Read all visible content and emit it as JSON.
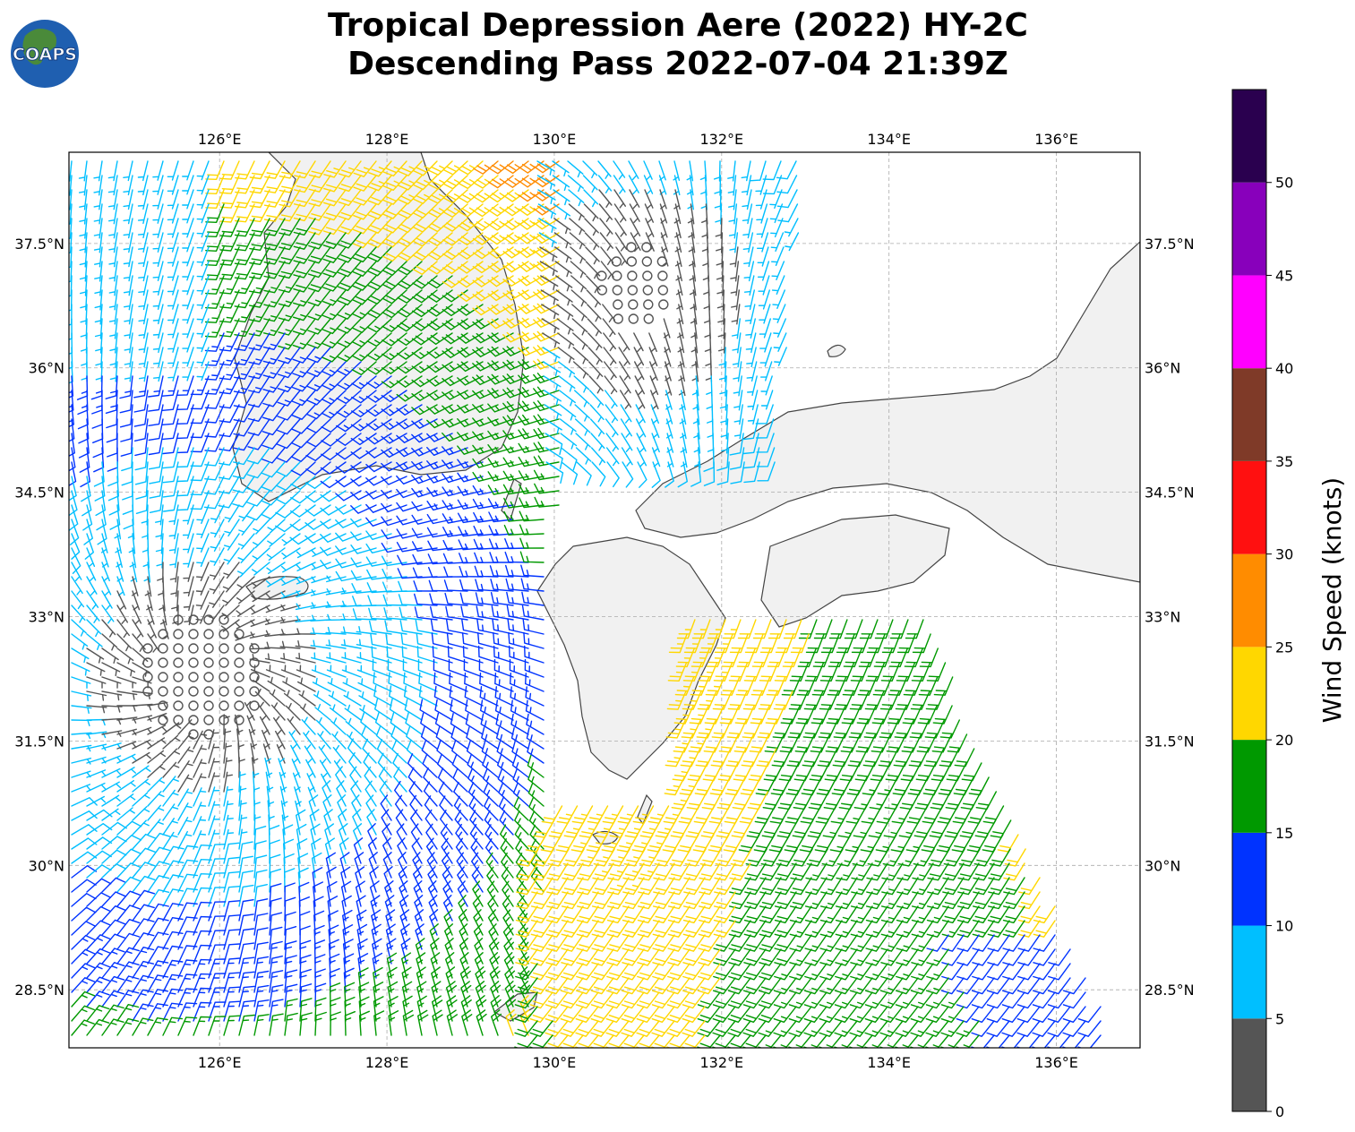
{
  "title_line1": "Tropical Depression Aere (2022) HY-2C",
  "title_line2": "Descending Pass 2022-07-04 21:39Z",
  "logo_text": "COAPS",
  "map": {
    "lon_min": 124.2,
    "lon_max": 137.0,
    "lat_min": 27.8,
    "lat_max": 38.6,
    "lon_ticks": [
      126,
      128,
      130,
      132,
      134,
      136
    ],
    "lon_labels": [
      "126°E",
      "128°E",
      "130°E",
      "132°E",
      "134°E",
      "136°E"
    ],
    "lat_ticks": [
      28.5,
      30,
      31.5,
      33,
      34.5,
      36,
      37.5
    ],
    "lat_labels": [
      "28.5°N",
      "30°N",
      "31.5°N",
      "33°N",
      "34.5°N",
      "36°N",
      "37.5°N"
    ],
    "land_color": "#f1f1f1",
    "coast_color": "#444444"
  },
  "colorbar": {
    "label": "Wind Speed (knots)",
    "ticks": [
      0,
      5,
      10,
      15,
      20,
      25,
      30,
      35,
      40,
      45,
      50
    ],
    "tick_labels": [
      "0",
      "5",
      "10",
      "15",
      "20",
      "25",
      "30",
      "35",
      "40",
      "45",
      "50"
    ],
    "max": 55,
    "colors": [
      "#555555",
      "#00bfff",
      "#0033ff",
      "#009900",
      "#ffd700",
      "#ff8c00",
      "#ff1010",
      "#7f3a28",
      "#ff00ff",
      "#8800bb",
      "#2a004f"
    ]
  },
  "wind_field": {
    "swaths": [
      "west",
      "east"
    ],
    "centers": [
      {
        "name": "circulation-center",
        "lon": 125.8,
        "lat": 32.3
      },
      {
        "name": "light-wind-area-north",
        "lon": 131.0,
        "lat": 37.0
      }
    ]
  }
}
